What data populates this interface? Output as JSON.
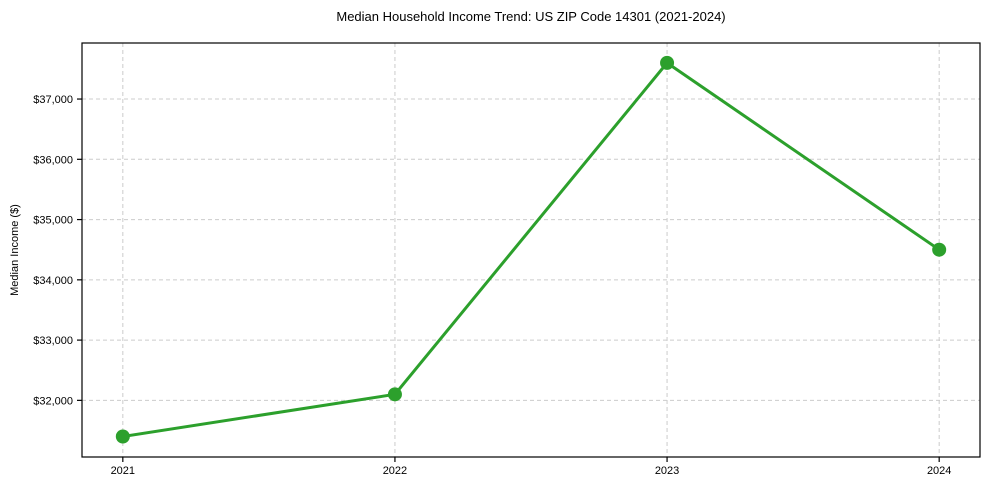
{
  "chart_data": {
    "type": "line",
    "title": "Median Household Income Trend: US ZIP Code 14301 (2021-2024)",
    "xlabel": "",
    "ylabel": "Median Income ($)",
    "categories": [
      2021,
      2022,
      2023,
      2024
    ],
    "series": [
      {
        "name": "Median Household Income",
        "values": [
          31400,
          32100,
          37600,
          34500
        ],
        "color": "#2ca02c",
        "marker": "circle",
        "marker_radius": 7,
        "line_width": 3
      }
    ],
    "yticks": [
      32000,
      33000,
      34000,
      35000,
      36000,
      37000
    ],
    "ytick_labels": [
      "$32,000",
      "$33,000",
      "$34,000",
      "$35,000",
      "$36,000",
      "$37,000"
    ],
    "xtick_labels": [
      "2021",
      "2022",
      "2023",
      "2024"
    ],
    "ylim": [
      31060,
      37930
    ],
    "xlim": [
      2020.85,
      2024.15
    ],
    "grid": "both",
    "grid_style": "dashed",
    "grid_color": "#cccccc",
    "axis_color": "#000000",
    "text_color": "#000000",
    "background_color": "#ffffff",
    "legend": "none"
  }
}
